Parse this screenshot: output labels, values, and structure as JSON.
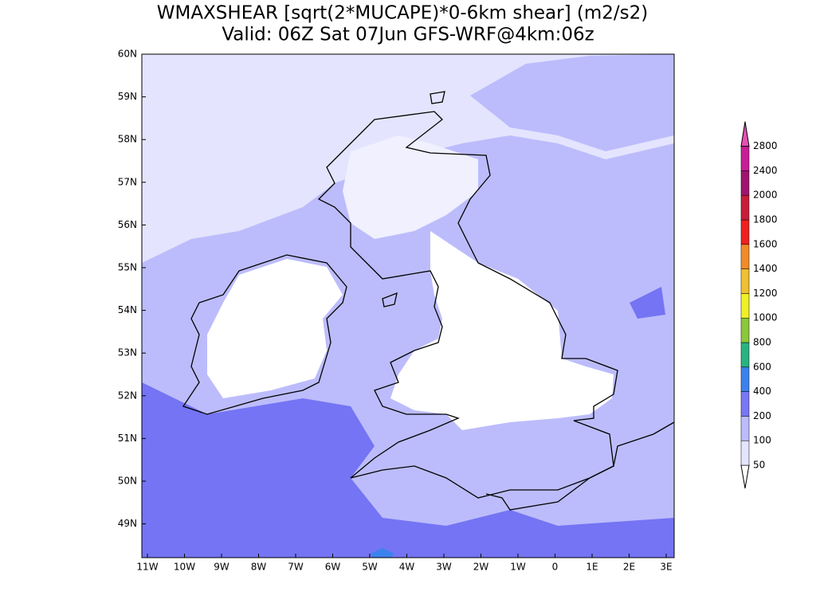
{
  "title": {
    "line1": "WMAXSHEAR [sqrt(2*MUCAPE)*0-6km shear] (m2/s2)",
    "line2": "Valid: 06Z Sat 07Jun GFS-WRF@4km:06z"
  },
  "lat_labels": [
    "60N",
    "59N",
    "58N",
    "57N",
    "56N",
    "55N",
    "54N",
    "53N",
    "52N",
    "51N",
    "50N",
    "49N"
  ],
  "lon_labels": [
    "11W",
    "10W",
    "9W",
    "8W",
    "7W",
    "6W",
    "5W",
    "4W",
    "3W",
    "2W",
    "1W",
    "0",
    "1E",
    "2E",
    "3E"
  ],
  "colorbar": {
    "labels": [
      50,
      100,
      200,
      400,
      600,
      800,
      1000,
      1200,
      1400,
      1600,
      1800,
      2000,
      2400,
      2800
    ],
    "colors": [
      "#ffffff",
      "#e4e4fe",
      "#bcbcfc",
      "#7878f4",
      "#3c82ee",
      "#28b482",
      "#8cc83c",
      "#f0f028",
      "#f0c032",
      "#f08c28",
      "#f02020",
      "#c81e3c",
      "#a0146e",
      "#c81e96",
      "#e650b4"
    ]
  }
}
